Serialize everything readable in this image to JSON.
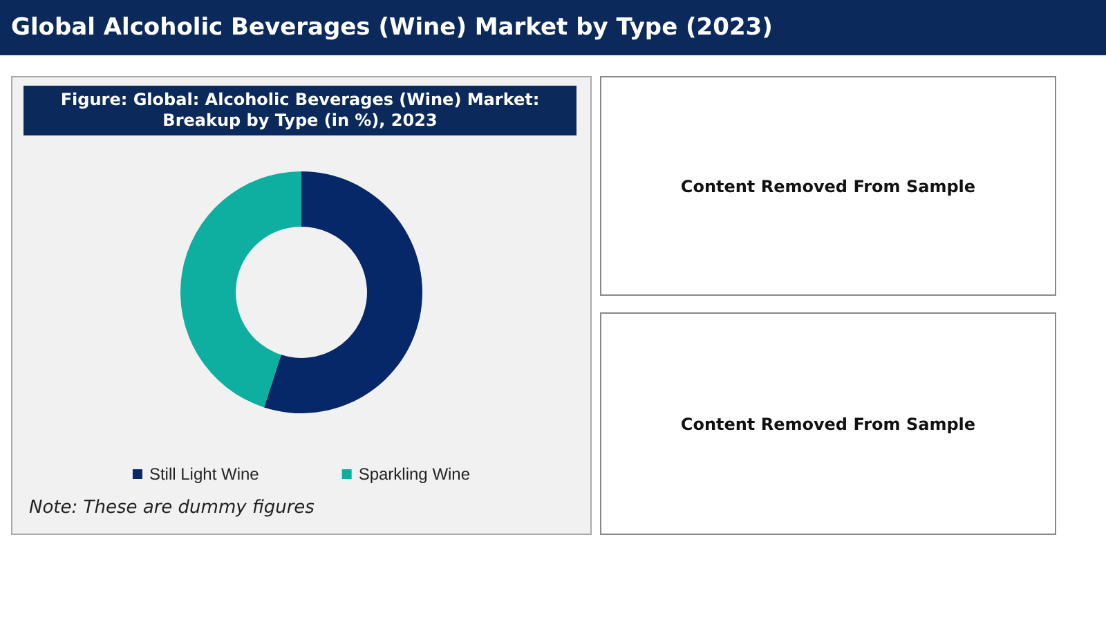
{
  "chart_data": {
    "type": "donut",
    "title": "Global Alcoholic Beverages (Wine) Market by Type (2023)",
    "subtitle": "Figure: Global: Alcoholic Beverages (Wine) Market: Breakup by Type (in %), 2023",
    "categories": [
      "Still Light Wine",
      "Sparkling Wine"
    ],
    "values": [
      55,
      45
    ],
    "colors": [
      "#062868",
      "#0eaea1"
    ],
    "legend": "bottom",
    "annotations": [
      "Note: These are dummy figures",
      "Content Removed From Sample",
      "Content Removed From Sample"
    ]
  }
}
